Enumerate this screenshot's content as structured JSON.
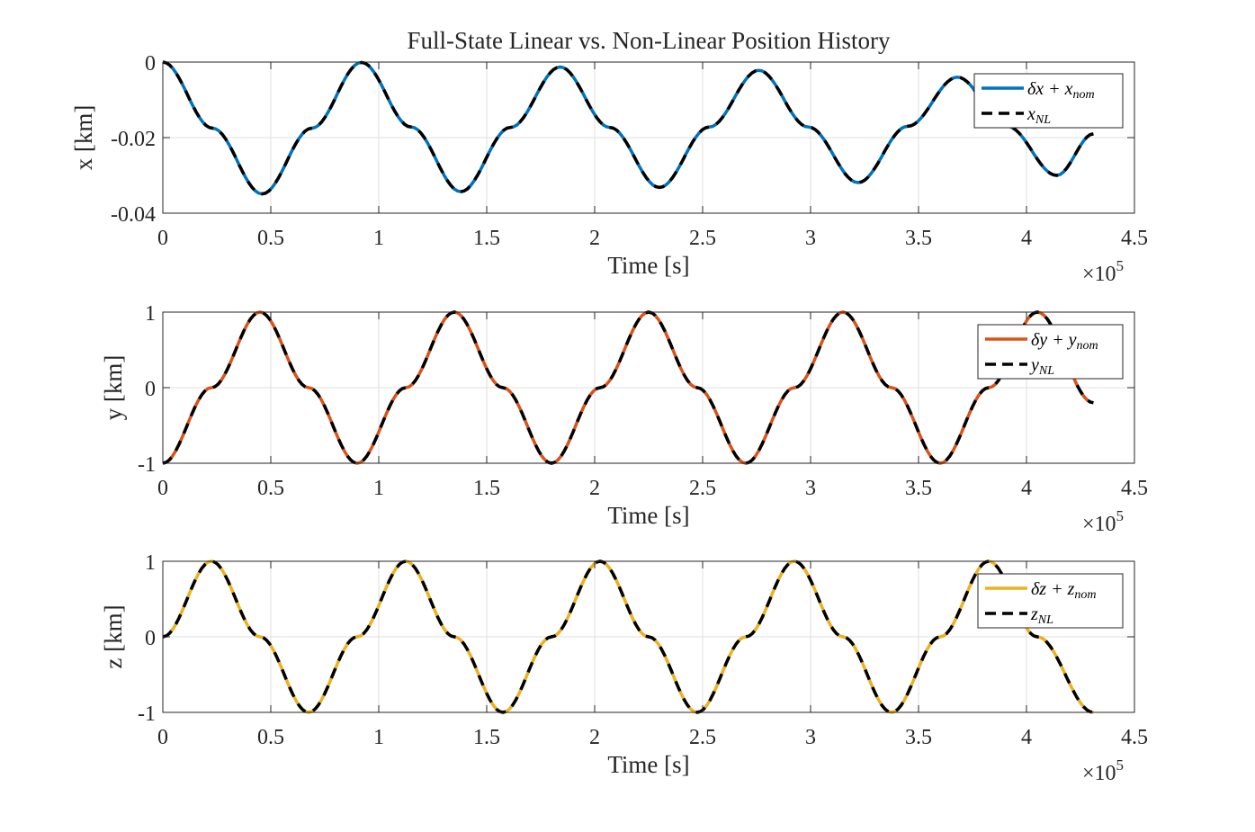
{
  "figure": {
    "title": "Full-State Linear vs. Non-Linear Position History",
    "x_exponent_label": "×10",
    "x_exponent_power": "5"
  },
  "colors": {
    "x_linear": "#0072BD",
    "y_linear": "#D95319",
    "z_linear": "#EDB120",
    "nonlinear": "#000000"
  },
  "chart_data": [
    {
      "type": "line",
      "xlabel": "Time [s]",
      "ylabel": "x [km]",
      "xlim": [
        0,
        450000
      ],
      "ylim": [
        -0.04,
        0
      ],
      "x_ticks": [
        0,
        50000,
        100000,
        150000,
        200000,
        250000,
        300000,
        350000,
        400000,
        450000
      ],
      "x_tick_labels": [
        "0",
        "0.5",
        "1",
        "1.5",
        "2",
        "2.5",
        "3",
        "3.5",
        "4",
        "4.5"
      ],
      "y_ticks": [
        -0.04,
        -0.02,
        0
      ],
      "y_tick_labels": [
        "-0.04",
        "-0.02",
        "0"
      ],
      "grid": true,
      "legend_position": "top-right",
      "series": [
        {
          "name": "δx + x_nom",
          "legend_main": "δx + x",
          "legend_sub": "nom",
          "style": "solid",
          "x": [
            0,
            23000,
            46000,
            69000,
            92000,
            115000,
            138000,
            161000,
            184000,
            207000,
            230000,
            253000,
            276000,
            299000,
            322000,
            345000,
            368000,
            391000,
            414000,
            431000
          ],
          "y": [
            0,
            -0.0175,
            -0.0349,
            -0.0175,
            -0.0001,
            -0.0172,
            -0.0343,
            -0.0173,
            -0.0013,
            -0.0173,
            -0.0332,
            -0.0172,
            -0.0022,
            -0.0172,
            -0.0319,
            -0.017,
            -0.004,
            -0.017,
            -0.03,
            -0.019
          ]
        },
        {
          "name": "x_NL",
          "legend_main": "x",
          "legend_sub": "NL",
          "style": "dashed",
          "x": [
            0,
            23000,
            46000,
            69000,
            92000,
            115000,
            138000,
            161000,
            184000,
            207000,
            230000,
            253000,
            276000,
            299000,
            322000,
            345000,
            368000,
            391000,
            414000,
            431000
          ],
          "y": [
            0,
            -0.0175,
            -0.0349,
            -0.0175,
            -0.0001,
            -0.0172,
            -0.0343,
            -0.0173,
            -0.0013,
            -0.0173,
            -0.0332,
            -0.0172,
            -0.0022,
            -0.0172,
            -0.0319,
            -0.017,
            -0.004,
            -0.017,
            -0.03,
            -0.019
          ]
        }
      ]
    },
    {
      "type": "line",
      "xlabel": "Time [s]",
      "ylabel": "y [km]",
      "xlim": [
        0,
        450000
      ],
      "ylim": [
        -1,
        1
      ],
      "x_ticks": [
        0,
        50000,
        100000,
        150000,
        200000,
        250000,
        300000,
        350000,
        400000,
        450000
      ],
      "x_tick_labels": [
        "0",
        "0.5",
        "1",
        "1.5",
        "2",
        "2.5",
        "3",
        "3.5",
        "4",
        "4.5"
      ],
      "y_ticks": [
        -1,
        0,
        1
      ],
      "y_tick_labels": [
        "-1",
        "0",
        "1"
      ],
      "grid": true,
      "legend_position": "top-right",
      "series": [
        {
          "name": "δy + y_nom",
          "legend_main": "δy + y",
          "legend_sub": "nom",
          "style": "solid",
          "x": [
            0,
            22500,
            45000,
            67500,
            90000,
            112500,
            135000,
            157500,
            180000,
            202500,
            225000,
            247500,
            270000,
            292500,
            315000,
            337500,
            360000,
            382500,
            405000,
            431000
          ],
          "y": [
            -1,
            0,
            1,
            0,
            -1,
            0,
            1,
            0,
            -1,
            0,
            1,
            0,
            -1,
            0,
            1,
            0,
            -1,
            0,
            1,
            -0.2
          ]
        },
        {
          "name": "y_NL",
          "legend_main": "y",
          "legend_sub": "NL",
          "style": "dashed",
          "x": [
            0,
            22500,
            45000,
            67500,
            90000,
            112500,
            135000,
            157500,
            180000,
            202500,
            225000,
            247500,
            270000,
            292500,
            315000,
            337500,
            360000,
            382500,
            405000,
            431000
          ],
          "y": [
            -1,
            0,
            1,
            0,
            -1,
            0,
            1,
            0,
            -1,
            0,
            1,
            0,
            -1,
            0,
            1,
            0,
            -1,
            0,
            1,
            -0.2
          ]
        }
      ]
    },
    {
      "type": "line",
      "xlabel": "Time [s]",
      "ylabel": "z [km]",
      "xlim": [
        0,
        450000
      ],
      "ylim": [
        -1,
        1
      ],
      "x_ticks": [
        0,
        50000,
        100000,
        150000,
        200000,
        250000,
        300000,
        350000,
        400000,
        450000
      ],
      "x_tick_labels": [
        "0",
        "0.5",
        "1",
        "1.5",
        "2",
        "2.5",
        "3",
        "3.5",
        "4",
        "4.5"
      ],
      "y_ticks": [
        -1,
        0,
        1
      ],
      "y_tick_labels": [
        "-1",
        "0",
        "1"
      ],
      "grid": true,
      "legend_position": "top-right",
      "series": [
        {
          "name": "δz + z_nom",
          "legend_main": "δz + z",
          "legend_sub": "nom",
          "style": "solid",
          "x": [
            0,
            22500,
            45000,
            67500,
            90000,
            112500,
            135000,
            157500,
            180000,
            202500,
            225000,
            247500,
            270000,
            292500,
            315000,
            337500,
            360000,
            382500,
            405000,
            431000
          ],
          "y": [
            0,
            1,
            0,
            -1,
            0,
            1,
            0,
            -1,
            0,
            1,
            0,
            -1,
            0,
            1,
            0,
            -1,
            0,
            1,
            0,
            -1
          ]
        },
        {
          "name": "z_NL",
          "legend_main": "z",
          "legend_sub": "NL",
          "style": "dashed",
          "x": [
            0,
            22500,
            45000,
            67500,
            90000,
            112500,
            135000,
            157500,
            180000,
            202500,
            225000,
            247500,
            270000,
            292500,
            315000,
            337500,
            360000,
            382500,
            405000,
            431000
          ],
          "y": [
            0,
            1,
            0,
            -1,
            0,
            1,
            0,
            -1,
            0,
            1,
            0,
            -1,
            0,
            1,
            0,
            -1,
            0,
            1,
            0,
            -1
          ]
        }
      ]
    }
  ]
}
